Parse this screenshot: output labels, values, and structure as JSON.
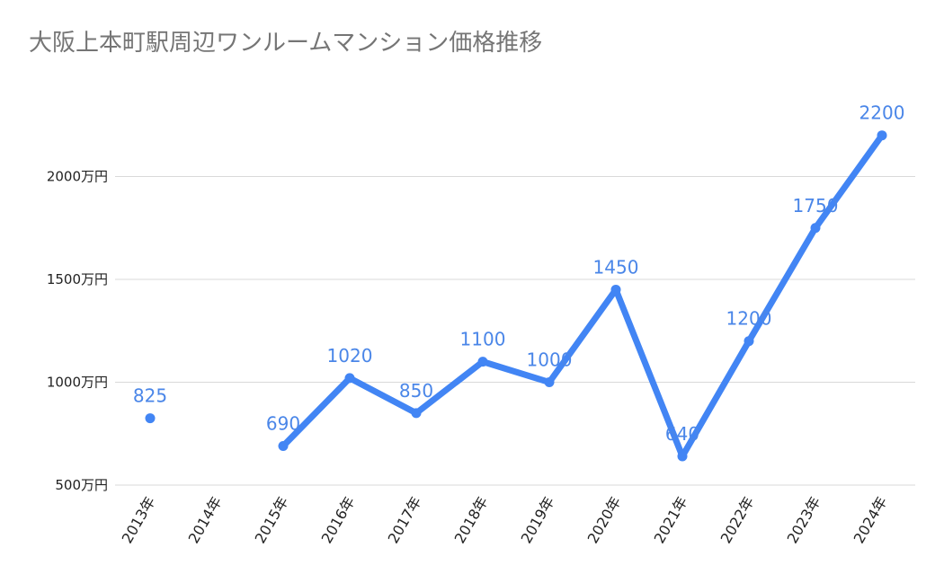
{
  "chart_data": {
    "type": "line",
    "title": "大阪上本町駅周辺ワンルームマンション価格推移",
    "xlabel": "",
    "ylabel": "",
    "categories": [
      "2013年",
      "2014年",
      "2015年",
      "2016年",
      "2017年",
      "2018年",
      "2019年",
      "2020年",
      "2021年",
      "2022年",
      "2023年",
      "2024年"
    ],
    "series": [
      {
        "values": [
          825,
          null,
          690,
          1020,
          850,
          1100,
          1000,
          1450,
          640,
          1200,
          1750,
          2200
        ],
        "color": "#4285f4"
      }
    ],
    "data_labels": [
      "825",
      "",
      "690",
      "1020",
      "850",
      "1100",
      "1000",
      "1450",
      "640",
      "1200",
      "1750",
      "2200"
    ],
    "y_ticks": [
      500,
      1000,
      1500,
      2000
    ],
    "y_tick_labels": [
      "500万円",
      "1000万円",
      "1500万円",
      "2000万円"
    ],
    "ylim": [
      500,
      2500
    ],
    "grid": true,
    "legend": "none",
    "label_color": "#4a86e8",
    "grid_color": "#d9d9d9"
  }
}
